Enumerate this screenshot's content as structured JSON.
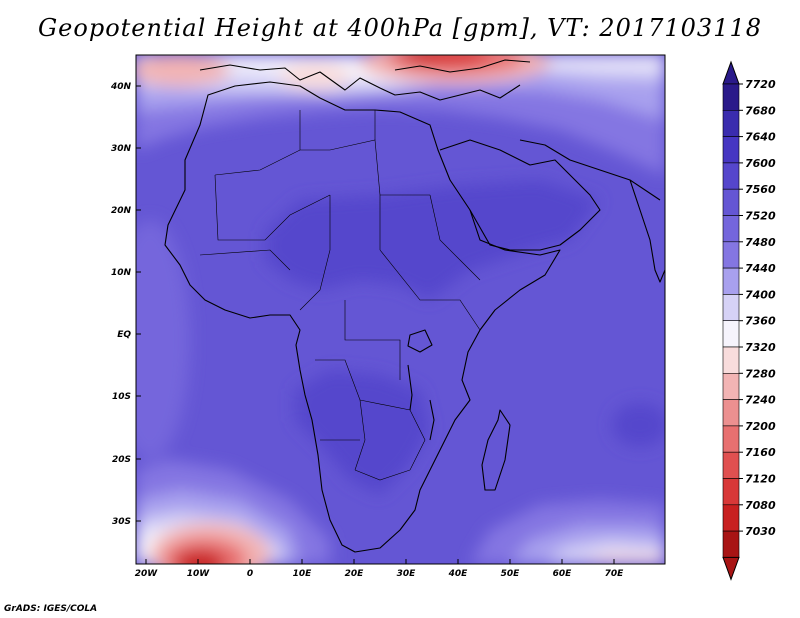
{
  "title": "Geopotential Height at 400hPa [gpm], VT: 2017103118",
  "credit": "GrADS: IGES/COLA",
  "map": {
    "lon_labels": [
      "20W",
      "10W",
      "0",
      "10E",
      "20E",
      "30E",
      "40E",
      "50E",
      "60E",
      "70E"
    ],
    "lat_labels": [
      "40N",
      "30N",
      "20N",
      "10N",
      "EQ",
      "10S",
      "20S",
      "30S"
    ]
  },
  "colorbar": {
    "labels": [
      "7720",
      "7680",
      "7640",
      "7600",
      "7560",
      "7520",
      "7480",
      "7440",
      "7400",
      "7360",
      "7320",
      "7280",
      "7240",
      "7200",
      "7160",
      "7120",
      "7080",
      "7030"
    ],
    "colors": [
      "#2a1a8a",
      "#3a2cae",
      "#4636c2",
      "#5546cc",
      "#6456d4",
      "#7466dc",
      "#8476e2",
      "#a8a0ee",
      "#d6d2f6",
      "#f6f4fc",
      "#f8dcdc",
      "#f2b4b4",
      "#ec9090",
      "#e87070",
      "#e05050",
      "#d83838",
      "#c82020",
      "#a81414"
    ]
  },
  "chart_data": {
    "type": "heatmap",
    "title": "Geopotential Height at 400hPa [gpm], VT: 2017103118",
    "x_ticks": [
      "20W",
      "10W",
      "0",
      "10E",
      "20E",
      "30E",
      "40E",
      "50E",
      "60E",
      "70E"
    ],
    "y_ticks": [
      "40N",
      "30N",
      "20N",
      "10N",
      "EQ",
      "10S",
      "20S",
      "30S"
    ],
    "xlim": [
      -22,
      80
    ],
    "ylim": [
      -37,
      45
    ],
    "colorbar_levels": [
      7720,
      7680,
      7640,
      7600,
      7560,
      7520,
      7480,
      7440,
      7400,
      7360,
      7320,
      7280,
      7240,
      7200,
      7160,
      7120,
      7080,
      7030
    ],
    "colorbar_placement": "right"
  }
}
